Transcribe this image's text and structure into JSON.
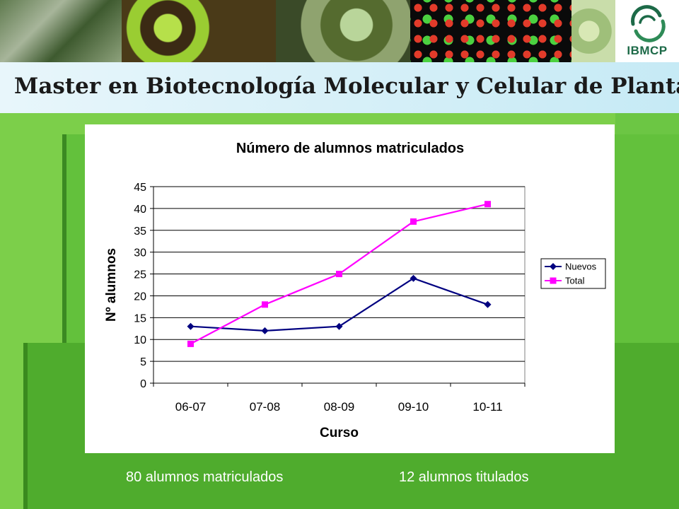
{
  "header": {
    "logo_text": "IBMCP",
    "title": "Master en Biotecnología Molecular y Celular de Plantas"
  },
  "colors": {
    "nuevos": "#000080",
    "total": "#ff00ff",
    "background_green": "#7ccf4a"
  },
  "chart_data": {
    "type": "line",
    "title": "Número de alumnos matriculados",
    "xlabel": "Curso",
    "ylabel": "Nº alumnos",
    "categories": [
      "06-07",
      "07-08",
      "08-09",
      "09-10",
      "10-11"
    ],
    "ylim": [
      0,
      45
    ],
    "yticks": [
      0,
      5,
      10,
      15,
      20,
      25,
      30,
      35,
      40,
      45
    ],
    "grid": true,
    "legend_position": "right",
    "series": [
      {
        "name": "Nuevos",
        "values": [
          13,
          12,
          13,
          24,
          18
        ],
        "color": "#000080",
        "marker": "diamond"
      },
      {
        "name": "Total",
        "values": [
          9,
          18,
          25,
          37,
          41
        ],
        "color": "#ff00ff",
        "marker": "square"
      }
    ]
  },
  "footer": {
    "left_caption": "80 alumnos matriculados",
    "right_caption": "12 alumnos titulados"
  }
}
